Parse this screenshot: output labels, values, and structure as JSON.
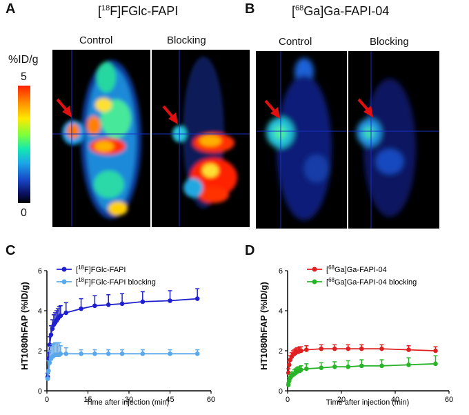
{
  "panels": {
    "A": {
      "letter": "A",
      "title_sup": "18",
      "title_rest": "F]FGlc-FAPI",
      "control_label": "Control",
      "blocking_label": "Blocking"
    },
    "B": {
      "letter": "B",
      "title_sup": "68",
      "title_rest": "Ga]Ga-FAPI-04",
      "control_label": "Control",
      "blocking_label": "Blocking"
    },
    "C": {
      "letter": "C"
    },
    "D": {
      "letter": "D"
    }
  },
  "colorbar": {
    "unit": "%ID/g",
    "max_label": "5",
    "min_label": "0"
  },
  "chart_data": [
    {
      "type": "line",
      "ylabel": "HT1080hFAP (%ID/g)",
      "xlabel": "Time after injection (min)",
      "xlim": [
        0,
        60
      ],
      "ylim": [
        0,
        6
      ],
      "xticks": [
        0,
        15,
        30,
        45,
        60
      ],
      "yticks": [
        0,
        2,
        4,
        6
      ],
      "legend_position": "top-left",
      "series": [
        {
          "name_sup": "18",
          "name_rest": "F]FGlc-FAPI",
          "color": "#1f1fd0",
          "x": [
            0.3,
            0.6,
            1,
            1.5,
            2,
            2.5,
            3,
            3.5,
            4,
            4.5,
            5,
            7,
            12.5,
            17.5,
            22.5,
            27.5,
            35,
            45,
            55
          ],
          "y": [
            0.7,
            1.6,
            2.3,
            2.8,
            3.1,
            3.3,
            3.4,
            3.5,
            3.6,
            3.7,
            3.75,
            3.9,
            4.1,
            4.25,
            4.3,
            4.35,
            4.45,
            4.5,
            4.6
          ],
          "err": [
            0.15,
            0.3,
            0.4,
            0.45,
            0.45,
            0.5,
            0.5,
            0.5,
            0.5,
            0.5,
            0.5,
            0.5,
            0.5,
            0.5,
            0.5,
            0.5,
            0.5,
            0.5,
            0.5
          ]
        },
        {
          "name_sup": "18",
          "name_rest": "F]FGlc-FAPI blocking",
          "color": "#5aa8ec",
          "x": [
            0.3,
            0.6,
            1,
            1.5,
            2,
            2.5,
            3,
            3.5,
            4,
            4.5,
            5,
            7,
            12.5,
            17.5,
            22.5,
            27.5,
            35,
            45,
            55
          ],
          "y": [
            0.6,
            1.0,
            1.4,
            1.6,
            1.7,
            1.75,
            1.8,
            1.8,
            1.8,
            1.8,
            1.85,
            1.85,
            1.85,
            1.85,
            1.85,
            1.85,
            1.85,
            1.85,
            1.85
          ],
          "err": [
            0.3,
            0.5,
            0.6,
            0.6,
            0.6,
            0.6,
            0.6,
            0.6,
            0.6,
            0.6,
            0.4,
            0.3,
            0.2,
            0.2,
            0.2,
            0.2,
            0.2,
            0.2,
            0.2
          ]
        }
      ]
    },
    {
      "type": "line",
      "ylabel": "HT1080hFAP (%ID/g)",
      "xlabel": "Time after injection (min)",
      "xlim": [
        0,
        60
      ],
      "ylim": [
        0,
        6
      ],
      "xticks": [
        0,
        20,
        40,
        60
      ],
      "yticks": [
        0,
        2,
        4,
        6
      ],
      "legend_position": "top-right",
      "series": [
        {
          "name_sup": "68",
          "name_rest": "Ga]Ga-FAPI-04",
          "color": "#e02020",
          "x": [
            0.3,
            0.6,
            1,
            1.5,
            2,
            2.5,
            3,
            3.5,
            4,
            4.5,
            5,
            7,
            12.5,
            17.5,
            22.5,
            27.5,
            35,
            45,
            55
          ],
          "y": [
            0.9,
            1.3,
            1.55,
            1.7,
            1.8,
            1.85,
            1.9,
            1.95,
            1.95,
            2.0,
            2.0,
            2.05,
            2.1,
            2.1,
            2.1,
            2.1,
            2.1,
            2.05,
            2.0
          ],
          "err": [
            0.2,
            0.2,
            0.2,
            0.2,
            0.2,
            0.2,
            0.2,
            0.2,
            0.2,
            0.2,
            0.2,
            0.2,
            0.2,
            0.2,
            0.2,
            0.2,
            0.2,
            0.2,
            0.2
          ]
        },
        {
          "name_sup": "68",
          "name_rest": "Ga]Ga-FAPI-04 blocking",
          "color": "#28b428",
          "x": [
            0.3,
            0.6,
            1,
            1.5,
            2,
            2.5,
            3,
            3.5,
            4,
            4.5,
            5,
            7,
            12.5,
            17.5,
            22.5,
            27.5,
            35,
            45,
            55
          ],
          "y": [
            0.3,
            0.5,
            0.65,
            0.75,
            0.8,
            0.85,
            0.9,
            0.95,
            1.0,
            1.0,
            1.05,
            1.1,
            1.15,
            1.2,
            1.2,
            1.25,
            1.25,
            1.3,
            1.35
          ],
          "err": [
            0.1,
            0.15,
            0.15,
            0.15,
            0.15,
            0.2,
            0.2,
            0.2,
            0.2,
            0.2,
            0.2,
            0.25,
            0.25,
            0.25,
            0.3,
            0.3,
            0.3,
            0.35,
            0.4
          ]
        }
      ]
    }
  ]
}
